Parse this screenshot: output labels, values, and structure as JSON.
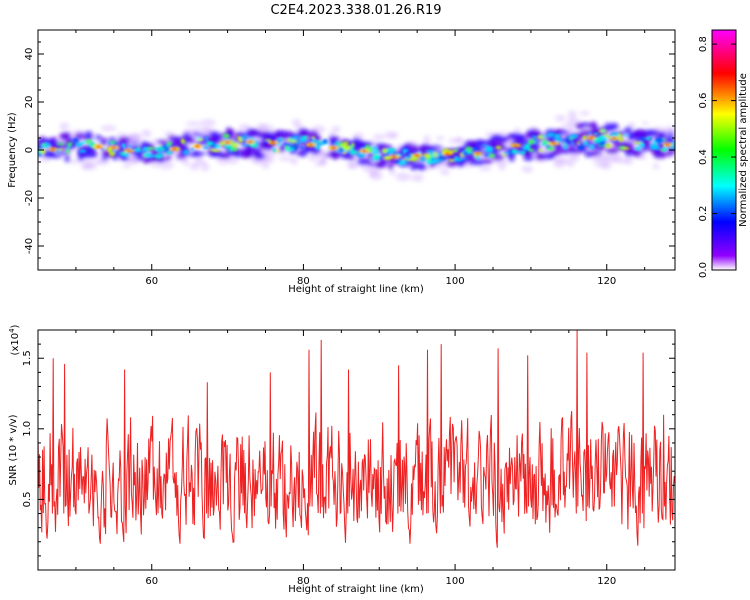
{
  "title": "C2E4.2023.338.01.26.R19",
  "chart_data": [
    {
      "type": "heatmap",
      "xlabel": "Height of straight line (km)",
      "ylabel": "Frequency (Hz)",
      "xlim": [
        45,
        129
      ],
      "ylim": [
        -50,
        50
      ],
      "xticks": [
        60,
        80,
        100,
        120
      ],
      "yticks": [
        -40,
        -20,
        0,
        20,
        40
      ],
      "colorbar": {
        "label": "Normalized spectral amplitude",
        "range": [
          0,
          0.85
        ],
        "ticks": [
          "0.0",
          "0.2",
          "0.4",
          "0.6",
          "0.8"
        ],
        "colormap": [
          "#ffffff",
          "#7f00ff",
          "#0000ff",
          "#00ffff",
          "#00ff00",
          "#ffff00",
          "#ff0000",
          "#ff00ff"
        ]
      },
      "ridge": {
        "x": [
          45,
          50,
          55,
          60,
          65,
          70,
          75,
          80,
          85,
          90,
          95,
          100,
          105,
          110,
          115,
          120,
          125,
          129
        ],
        "center_hz": [
          0,
          2,
          1,
          -1,
          2,
          3,
          2,
          3,
          1,
          -2,
          -3,
          -2,
          0,
          2,
          4,
          5,
          3,
          2
        ],
        "halfwidth_hz": [
          5,
          7,
          6,
          5,
          6,
          7,
          6,
          6,
          5,
          6,
          6,
          5,
          6,
          7,
          8,
          8,
          7,
          6
        ]
      }
    },
    {
      "type": "line",
      "xlabel": "Height of straight line (km)",
      "ylabel": "SNR (10 * v/v)",
      "multiplier_label": "(x10",
      "multiplier_exp": "4",
      "multiplier_close": ")",
      "xlim": [
        45,
        129
      ],
      "ylim": [
        0,
        17000
      ],
      "xticks": [
        60,
        80,
        100,
        120
      ],
      "yticks": [
        5000,
        10000,
        15000
      ],
      "ytick_labels": [
        "0.5",
        "1.0",
        "1.5"
      ],
      "color": "#ee2222",
      "sample_count": 840,
      "peaks": [
        {
          "x": 47.0,
          "y": 15000
        },
        {
          "x": 48.5,
          "y": 14600
        },
        {
          "x": 56.4,
          "y": 14200
        },
        {
          "x": 67.3,
          "y": 13300
        },
        {
          "x": 75.6,
          "y": 14000
        },
        {
          "x": 80.7,
          "y": 15600
        },
        {
          "x": 82.3,
          "y": 16300
        },
        {
          "x": 85.9,
          "y": 14200
        },
        {
          "x": 92.6,
          "y": 14500
        },
        {
          "x": 96.4,
          "y": 15600
        },
        {
          "x": 98.2,
          "y": 16000
        },
        {
          "x": 105.7,
          "y": 15700
        },
        {
          "x": 109.6,
          "y": 15200
        },
        {
          "x": 116.1,
          "y": 17000
        },
        {
          "x": 117.4,
          "y": 15400
        },
        {
          "x": 124.8,
          "y": 15400
        },
        {
          "x": 127.5,
          "y": 11000
        }
      ]
    }
  ]
}
